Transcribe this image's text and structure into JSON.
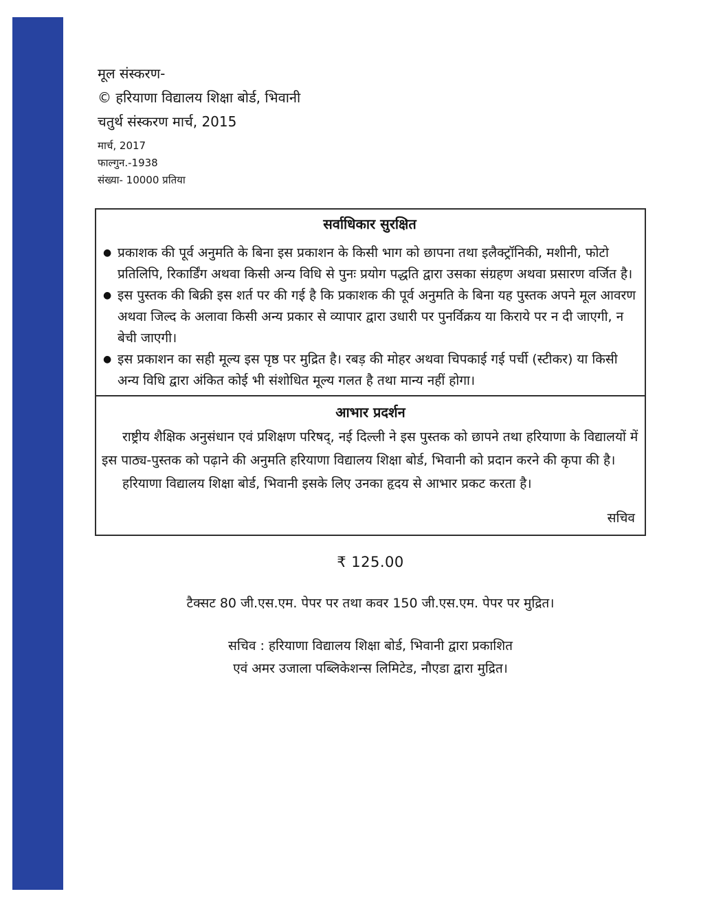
{
  "page": {
    "accent_color": "#2743a0"
  },
  "colophon": {
    "line1": "मूल संस्करण-",
    "line2": "© हरियाणा विद्यालय शिक्षा बोर्ड, भिवानी",
    "line3": "चतुर्थ संस्करण मार्च, 2015",
    "line4": "मार्च, 2017",
    "line5": "फाल्गुन.-1938",
    "line6": "संख्या- 10000 प्रतिया"
  },
  "copyright_box": {
    "title": "सर्वाधिकार सुरक्षित",
    "bullet_glyph": "●",
    "bullets": [
      "प्रकाशक की पूर्व अनुमति के बिना इस प्रकाशन के किसी भाग को छापना तथा इलैक्ट्रॉनिकी, मशीनी, फोटो प्रतिलिपि, रिकार्डिंग अथवा किसी अन्य विधि से पुनः प्रयोग पद्धति द्वारा उसका संग्रहण अथवा प्रसारण वर्जित है।",
      "इस पुस्तक की बिक्री इस शर्त पर की गई है कि प्रकाशक की पूर्व अनुमति के बिना यह पुस्तक अपने मूल आवरण अथवा जिल्द के अलावा किसी अन्य प्रकार से व्यापार द्वारा उधारी पर पुनर्विक्रय या किराये पर न दी जाएगी, न बेची जाएगी।",
      "इस प्रकाशन का सही मूल्य इस पृष्ठ पर मुद्रित है। रबड़ की मोहर अथवा चिपकाई गई पर्ची (स्टीकर) या किसी अन्य विधि द्वारा अंकित कोई भी संशोधित मूल्य गलत है तथा मान्य नहीं होगा।"
    ]
  },
  "acknowledgement_box": {
    "title": "आभार प्रदर्शन",
    "paragraph1": "राष्ट्रीय शैक्षिक अनुसंधान एवं प्रशिक्षण परिषद्, नई दिल्ली ने इस पुस्तक को छापने तथा हरियाणा के विद्यालयों में इस पाठ्य-पुस्तक को पढ़ाने की अनुमति हरियाणा विद्यालय शिक्षा बोर्ड, भिवानी को प्रदान करने की कृपा की है।",
    "paragraph2": "हरियाणा विद्यालय शिक्षा बोर्ड, भिवानी इसके लिए उनका हृदय से आभार प्रकट करता है।",
    "signature": "सचिव"
  },
  "pricing": {
    "price": "₹ 125.00",
    "paper_note": "टैक्सट 80 जी.एस.एम. पेपर पर तथा कवर 150 जी.एस.एम. पेपर पर मुद्रित।"
  },
  "imprint": {
    "line1": "सचिव : हरियाणा विद्यालय शिक्षा बोर्ड, भिवानी द्वारा प्रकाशित",
    "line2": "एवं अमर उजाला पब्लिकेशन्स लिमिटेड, नौएडा द्वारा मुद्रित।"
  }
}
